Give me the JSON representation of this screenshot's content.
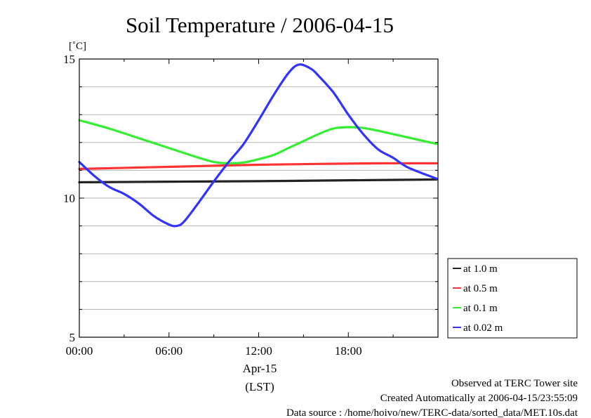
{
  "chart_data": {
    "type": "line",
    "title": "Soil Temperature / 2006-04-15",
    "ylabel": "[˚C]",
    "xlabel_date": "Apr-15",
    "xlabel_tz": "(LST)",
    "xlim": [
      0,
      24
    ],
    "ylim": [
      5,
      15
    ],
    "x_ticks": [
      {
        "x": 0,
        "label": "00:00"
      },
      {
        "x": 6,
        "label": "06:00"
      },
      {
        "x": 12,
        "label": "12:00"
      },
      {
        "x": 18,
        "label": "18:00"
      }
    ],
    "y_ticks": [
      {
        "y": 5,
        "label": "5"
      },
      {
        "y": 10,
        "label": "10"
      },
      {
        "y": 15,
        "label": "15"
      }
    ],
    "grid": true,
    "legend_position": "right",
    "series": [
      {
        "name": "at 1.0 m",
        "color": "#222222",
        "x": [
          0,
          6,
          12,
          18,
          23.9
        ],
        "y": [
          10.57,
          10.59,
          10.61,
          10.64,
          10.67
        ]
      },
      {
        "name": "at 0.5 m",
        "color": "#ff3333",
        "x": [
          0,
          4,
          8,
          12,
          16,
          20,
          23.9
        ],
        "y": [
          11.05,
          11.1,
          11.15,
          11.2,
          11.23,
          11.25,
          11.25
        ]
      },
      {
        "name": "at 0.1 m",
        "color": "#33ee33",
        "x": [
          0,
          2,
          4,
          6,
          8,
          9,
          10,
          11,
          12,
          13,
          14,
          15,
          16,
          17,
          18,
          19,
          20,
          21,
          22,
          23.9
        ],
        "y": [
          12.8,
          12.5,
          12.15,
          11.8,
          11.45,
          11.3,
          11.25,
          11.28,
          11.4,
          11.55,
          11.8,
          12.05,
          12.3,
          12.5,
          12.55,
          12.52,
          12.42,
          12.3,
          12.18,
          11.95
        ]
      },
      {
        "name": "at 0.02 m",
        "color": "#3333ff",
        "x": [
          0,
          1,
          2,
          3,
          4,
          5,
          6,
          6.5,
          7,
          8,
          9,
          10,
          11,
          12,
          13,
          14,
          14.7,
          15.5,
          16,
          17,
          18,
          19,
          20,
          21,
          22,
          23.9
        ],
        "y": [
          11.3,
          10.8,
          10.4,
          10.15,
          9.8,
          9.35,
          9.05,
          9.0,
          9.15,
          9.85,
          10.6,
          11.3,
          11.95,
          12.8,
          13.7,
          14.5,
          14.8,
          14.65,
          14.4,
          13.8,
          13.0,
          12.3,
          11.75,
          11.45,
          11.1,
          10.7
        ]
      }
    ]
  },
  "footer": {
    "line1": "Observed at TERC Tower site",
    "line2": "Created Automatically at 2006-04-15/23:55:09",
    "line3": "Data source : /home/hoivo/new/TERC-data/sorted_data/MET.10s.dat"
  }
}
